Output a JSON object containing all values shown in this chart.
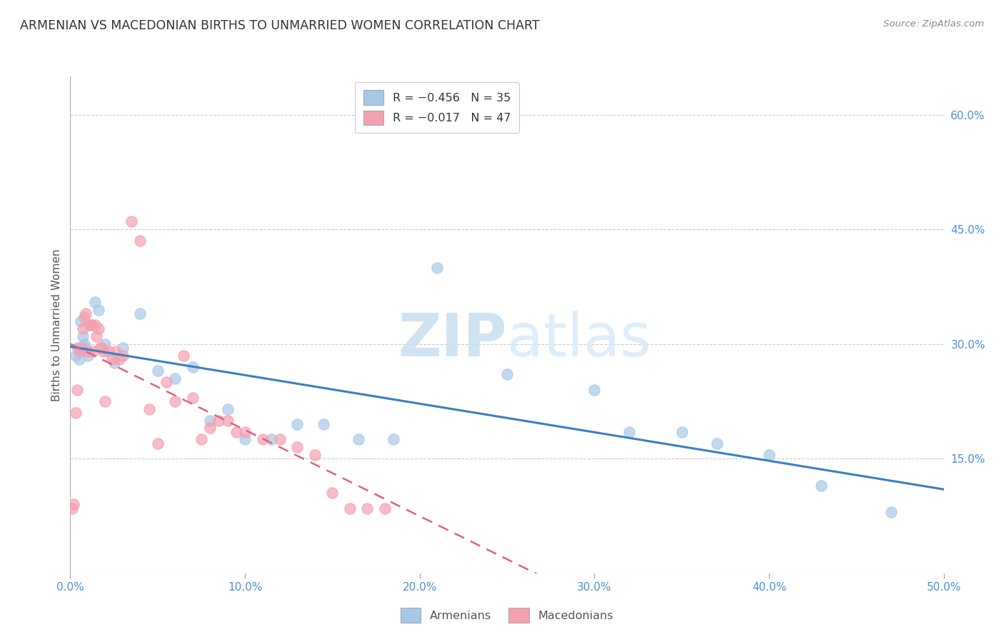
{
  "title": "ARMENIAN VS MACEDONIAN BIRTHS TO UNMARRIED WOMEN CORRELATION CHART",
  "source": "Source: ZipAtlas.com",
  "ylabel": "Births to Unmarried Women",
  "right_yticks": [
    "60.0%",
    "45.0%",
    "30.0%",
    "15.0%"
  ],
  "right_ytick_vals": [
    0.6,
    0.45,
    0.3,
    0.15
  ],
  "xmin": 0.0,
  "xmax": 0.5,
  "ymin": 0.0,
  "ymax": 0.65,
  "legend_r_armenian": "R = −0.456",
  "legend_n_armenian": "N = 35",
  "legend_r_macedonian": "R = −0.017",
  "legend_n_macedonian": "N = 47",
  "armenian_color": "#a8c8e8",
  "macedonian_color": "#f4a0b0",
  "trendline_armenian_color": "#3a7fc1",
  "trendline_macedonian_color": "#e06080",
  "armenians_x": [
    0.003,
    0.004,
    0.005,
    0.006,
    0.007,
    0.008,
    0.009,
    0.01,
    0.012,
    0.014,
    0.016,
    0.02,
    0.025,
    0.03,
    0.04,
    0.05,
    0.06,
    0.07,
    0.08,
    0.09,
    0.1,
    0.115,
    0.13,
    0.145,
    0.165,
    0.185,
    0.21,
    0.25,
    0.3,
    0.32,
    0.35,
    0.37,
    0.4,
    0.43,
    0.47
  ],
  "armenians_y": [
    0.285,
    0.295,
    0.28,
    0.33,
    0.31,
    0.3,
    0.295,
    0.285,
    0.325,
    0.355,
    0.345,
    0.3,
    0.275,
    0.295,
    0.34,
    0.265,
    0.255,
    0.27,
    0.2,
    0.215,
    0.175,
    0.175,
    0.195,
    0.195,
    0.175,
    0.175,
    0.4,
    0.26,
    0.24,
    0.185,
    0.185,
    0.17,
    0.155,
    0.115,
    0.08
  ],
  "macedonians_x": [
    0.001,
    0.002,
    0.003,
    0.004,
    0.005,
    0.006,
    0.007,
    0.008,
    0.009,
    0.01,
    0.011,
    0.012,
    0.013,
    0.014,
    0.015,
    0.016,
    0.017,
    0.018,
    0.019,
    0.02,
    0.022,
    0.024,
    0.026,
    0.028,
    0.03,
    0.035,
    0.04,
    0.045,
    0.05,
    0.055,
    0.06,
    0.065,
    0.07,
    0.075,
    0.08,
    0.085,
    0.09,
    0.095,
    0.1,
    0.11,
    0.12,
    0.13,
    0.14,
    0.15,
    0.16,
    0.17,
    0.18
  ],
  "macedonians_y": [
    0.085,
    0.09,
    0.21,
    0.24,
    0.29,
    0.295,
    0.32,
    0.335,
    0.34,
    0.29,
    0.325,
    0.325,
    0.29,
    0.325,
    0.31,
    0.32,
    0.295,
    0.295,
    0.29,
    0.225,
    0.29,
    0.28,
    0.29,
    0.28,
    0.285,
    0.46,
    0.435,
    0.215,
    0.17,
    0.25,
    0.225,
    0.285,
    0.23,
    0.175,
    0.19,
    0.2,
    0.2,
    0.185,
    0.185,
    0.175,
    0.175,
    0.165,
    0.155,
    0.105,
    0.085,
    0.085,
    0.085
  ]
}
